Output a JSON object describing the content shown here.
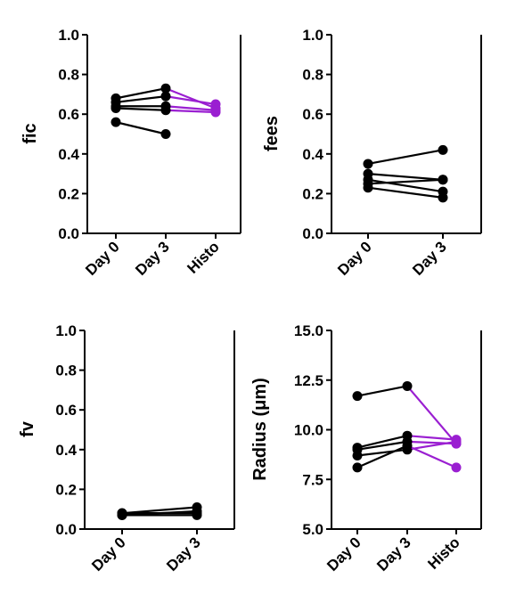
{
  "chart_data": [
    {
      "type": "line",
      "ylabel": "fic",
      "ylim": [
        0,
        1.0
      ],
      "yticks": [
        "0.0",
        "0.2",
        "0.4",
        "0.6",
        "0.8",
        "1.0"
      ],
      "categories": [
        "Day 0",
        "Day 3",
        "Histo"
      ],
      "colors": {
        "baseline": "#000000",
        "histo": "#9a1fd1"
      },
      "series": [
        {
          "values": [
            0.68,
            0.73,
            0.63
          ]
        },
        {
          "values": [
            0.66,
            0.69,
            0.65
          ]
        },
        {
          "values": [
            0.63,
            0.62,
            0.61
          ]
        },
        {
          "values": [
            0.64,
            0.64,
            0.62
          ]
        },
        {
          "values": [
            0.56,
            0.5,
            null
          ]
        }
      ]
    },
    {
      "type": "line",
      "ylabel": "fees",
      "ylim": [
        0,
        1.0
      ],
      "yticks": [
        "0.0",
        "0.2",
        "0.4",
        "0.6",
        "0.8",
        "1.0"
      ],
      "categories": [
        "Day 0",
        "Day 3"
      ],
      "colors": {
        "baseline": "#000000"
      },
      "series": [
        {
          "values": [
            0.35,
            0.42
          ]
        },
        {
          "values": [
            0.3,
            0.27
          ]
        },
        {
          "values": [
            0.27,
            0.21
          ]
        },
        {
          "values": [
            0.25,
            0.27
          ]
        },
        {
          "values": [
            0.23,
            0.18
          ]
        }
      ]
    },
    {
      "type": "line",
      "ylabel": "fv",
      "ylim": [
        0,
        1.0
      ],
      "yticks": [
        "0.0",
        "0.2",
        "0.4",
        "0.6",
        "0.8",
        "1.0"
      ],
      "categories": [
        "Day 0",
        "Day 3"
      ],
      "colors": {
        "baseline": "#000000"
      },
      "series": [
        {
          "values": [
            0.08,
            0.11
          ]
        },
        {
          "values": [
            0.08,
            0.08
          ]
        },
        {
          "values": [
            0.07,
            0.09
          ]
        },
        {
          "values": [
            0.07,
            0.07
          ]
        }
      ]
    },
    {
      "type": "line",
      "ylabel": "Radius (μm)",
      "ylim": [
        5.0,
        15.0
      ],
      "yticks": [
        "5.0",
        "7.5",
        "10.0",
        "12.5",
        "15.0"
      ],
      "categories": [
        "Day 0",
        "Day 3",
        "Histo"
      ],
      "colors": {
        "baseline": "#000000",
        "histo": "#9a1fd1"
      },
      "series": [
        {
          "values": [
            11.7,
            12.2,
            9.3
          ]
        },
        {
          "values": [
            9.1,
            9.7,
            9.5
          ]
        },
        {
          "values": [
            9.0,
            9.4,
            9.3
          ]
        },
        {
          "values": [
            8.7,
            9.0,
            9.4
          ]
        },
        {
          "values": [
            8.1,
            9.2,
            8.1
          ]
        }
      ]
    }
  ]
}
